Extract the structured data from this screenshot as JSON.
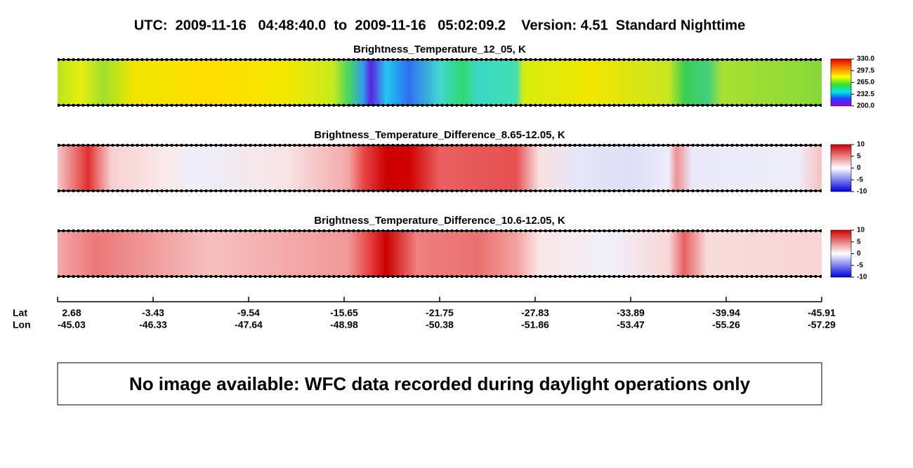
{
  "header": {
    "title": "UTC:  2009-11-16   04:48:40.0  to  2009-11-16   05:02:09.2    Version: 4.51  Standard Nighttime"
  },
  "panels": [
    {
      "title": "Brightness_Temperature_12_05, K",
      "colorbar_ticks": [
        "330.0",
        "297.5",
        "265.0",
        "232.5",
        "200.0"
      ]
    },
    {
      "title": "Brightness_Temperature_Difference_8.65-12.05, K",
      "colorbar_ticks": [
        "10",
        "5",
        "0",
        "-5",
        "-10"
      ]
    },
    {
      "title": "Brightness_Temperature_Difference_10.6-12.05, K",
      "colorbar_ticks": [
        "10",
        "5",
        "0",
        "-5",
        "-10"
      ]
    }
  ],
  "axis": {
    "lat_label": "Lat",
    "lon_label": "Lon",
    "lat": [
      "2.68",
      "-3.43",
      "-9.54",
      "-15.65",
      "-21.75",
      "-27.83",
      "-33.89",
      "-39.94",
      "-45.91"
    ],
    "lon": [
      "-45.03",
      "-46.33",
      "-47.64",
      "-48.98",
      "-50.38",
      "-51.86",
      "-53.47",
      "-55.26",
      "-57.29"
    ]
  },
  "message": "No image available: WFC data recorded during daylight operations only"
}
